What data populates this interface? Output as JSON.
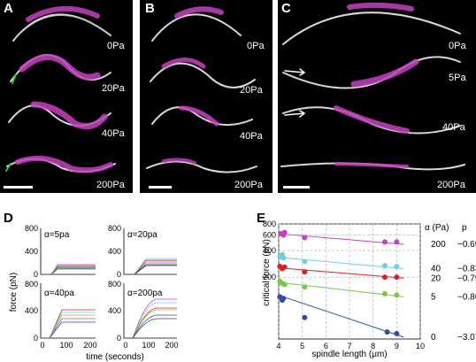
{
  "figure": {
    "panels": {
      "A": {
        "label": "A",
        "pressures": [
          "0Pa",
          "20Pa",
          "40Pa",
          "200Pa"
        ]
      },
      "B": {
        "label": "B",
        "pressures": [
          "0Pa",
          "20Pa",
          "40Pa",
          "200Pa"
        ]
      },
      "C": {
        "label": "C",
        "pressures": [
          "0Pa",
          "5Pa",
          "40Pa",
          "200Pa"
        ]
      },
      "D": {
        "label": "D"
      },
      "E": {
        "label": "E"
      }
    },
    "colors": {
      "magenta": "#c63fc0",
      "fiber": "#d8d8d8",
      "green": "#39c23a"
    }
  },
  "panel_D": {
    "ylabel": "force (pN)",
    "xlabel": "time (seconds)",
    "subplots": [
      {
        "title": "α=5pa",
        "yticks": [
          "800",
          "400",
          "0"
        ],
        "xticks": [
          "0",
          "100",
          "200"
        ]
      },
      {
        "title": "α=20pa",
        "yticks": [
          "800",
          "400",
          "0"
        ],
        "xticks": [
          "0",
          "100",
          "200"
        ]
      },
      {
        "title": "α=40pa",
        "yticks": [
          "800",
          "400",
          "0"
        ],
        "xticks": [
          "0",
          "100",
          "200"
        ]
      },
      {
        "title": "α=200pa",
        "yticks": [
          "800",
          "400",
          "0"
        ],
        "xticks": [
          "0",
          "100",
          "200"
        ]
      }
    ]
  },
  "chart_data": {
    "type": "scatter",
    "xlabel": "spindle length (μm)",
    "ylabel": "critical force (pN)",
    "yscale": "log",
    "xlim": [
      4,
      10
    ],
    "ylim": [
      40,
      800
    ],
    "xticks": [
      "4",
      "5",
      "6",
      "7",
      "8",
      "9",
      "10"
    ],
    "yticks": [
      "200",
      "400",
      "600",
      "800"
    ],
    "legend_header": {
      "alpha": "α (Pa)",
      "p": "p"
    },
    "series": [
      {
        "name": "200",
        "p": "−0.69",
        "color": "#c63fc0",
        "points": [
          [
            4.1,
            620
          ],
          [
            4.2,
            600
          ],
          [
            4.25,
            640
          ],
          [
            5.1,
            560
          ],
          [
            8.5,
            500
          ],
          [
            9.0,
            500
          ]
        ],
        "fit": [
          [
            4.0,
            620
          ],
          [
            9.3,
            470
          ]
        ]
      },
      {
        "name": "40",
        "p": "−0.83",
        "color": "#6ed0e8",
        "points": [
          [
            4.05,
            340
          ],
          [
            4.15,
            360
          ],
          [
            4.2,
            330
          ],
          [
            5.1,
            300
          ],
          [
            8.5,
            270
          ],
          [
            9.0,
            265
          ]
        ],
        "fit": [
          [
            4.0,
            335
          ],
          [
            9.3,
            250
          ]
        ]
      },
      {
        "name": "20",
        "p": "−0.79",
        "color": "#d8202a",
        "points": [
          [
            4.05,
            265
          ],
          [
            4.15,
            250
          ],
          [
            4.25,
            260
          ],
          [
            5.1,
            230
          ],
          [
            8.5,
            200
          ],
          [
            9.0,
            200
          ]
        ],
        "fit": [
          [
            4.0,
            255
          ],
          [
            9.3,
            195
          ]
        ]
      },
      {
        "name": "5",
        "p": "−0.86",
        "color": "#7ac943",
        "points": [
          [
            4.05,
            180
          ],
          [
            4.15,
            170
          ],
          [
            4.25,
            165
          ],
          [
            5.1,
            155
          ],
          [
            8.5,
            130
          ],
          [
            9.0,
            125
          ]
        ],
        "fit": [
          [
            4.0,
            175
          ],
          [
            9.3,
            120
          ]
        ]
      },
      {
        "name": "0",
        "p": "−3.07",
        "color": "#2e4fa0",
        "points": [
          [
            4.05,
            120
          ],
          [
            4.15,
            110
          ],
          [
            4.2,
            115
          ],
          [
            5.1,
            70
          ],
          [
            8.6,
            48
          ],
          [
            9.0,
            46
          ]
        ],
        "fit": [
          [
            4.0,
            125
          ],
          [
            9.3,
            42
          ]
        ]
      }
    ]
  }
}
